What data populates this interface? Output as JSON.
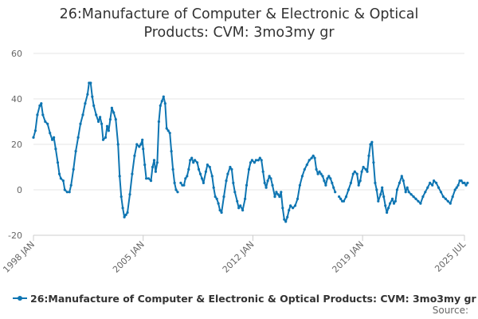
{
  "chart_data": {
    "type": "line",
    "title_line1": "26:Manufacture of Computer & Electronic & Optical",
    "title_line2": "Products: CVM: 3mo3my gr",
    "x_ticks": [
      "1998 JAN",
      "2005 JAN",
      "2012 JAN",
      "2019 JAN",
      "2025 JUL"
    ],
    "y_ticks": [
      "-20",
      "0",
      "20",
      "40",
      "60"
    ],
    "ylim": [
      -20,
      60
    ],
    "xlim": [
      1998.0,
      2025.5
    ],
    "grid": true,
    "legend_position": "bottom",
    "source": "Source:",
    "colors": {
      "series": "#0e75b2",
      "grid": "#e6e6e6",
      "axis": "#cccccc",
      "text": "#666666"
    },
    "series": [
      {
        "name": "26:Manufacture of Computer & Electronic & Optical Products: CVM: 3mo3my gr",
        "points": [
          [
            1998.0,
            23
          ],
          [
            1998.12,
            26
          ],
          [
            1998.25,
            33
          ],
          [
            1998.4,
            37
          ],
          [
            1998.5,
            38
          ],
          [
            1998.6,
            33
          ],
          [
            1998.75,
            30
          ],
          [
            1998.9,
            29
          ],
          [
            1999.05,
            25
          ],
          [
            1999.2,
            22
          ],
          [
            1999.3,
            23
          ],
          [
            1999.42,
            18
          ],
          [
            1999.55,
            12
          ],
          [
            1999.65,
            7
          ],
          [
            1999.75,
            5
          ],
          [
            1999.9,
            4
          ],
          [
            2000.0,
            0
          ],
          [
            2000.15,
            -1
          ],
          [
            2000.3,
            -1
          ],
          [
            2000.4,
            2
          ],
          [
            2000.55,
            9
          ],
          [
            2000.7,
            17
          ],
          [
            2000.85,
            23
          ],
          [
            2001.0,
            29
          ],
          [
            2001.15,
            33
          ],
          [
            2001.3,
            38
          ],
          [
            2001.45,
            42
          ],
          [
            2001.55,
            47
          ],
          [
            2001.65,
            47
          ],
          [
            2001.75,
            41
          ],
          [
            2001.85,
            37
          ],
          [
            2002.0,
            33
          ],
          [
            2002.15,
            30
          ],
          [
            2002.25,
            32
          ],
          [
            2002.35,
            29
          ],
          [
            2002.45,
            22
          ],
          [
            2002.6,
            23
          ],
          [
            2002.7,
            28
          ],
          [
            2002.8,
            26
          ],
          [
            2002.9,
            31
          ],
          [
            2003.0,
            36
          ],
          [
            2003.12,
            34
          ],
          [
            2003.25,
            31
          ],
          [
            2003.4,
            20
          ],
          [
            2003.5,
            6
          ],
          [
            2003.6,
            -3
          ],
          [
            2003.7,
            -8
          ],
          [
            2003.8,
            -12
          ],
          [
            2003.9,
            -11
          ],
          [
            2004.0,
            -10
          ],
          [
            2004.15,
            -2
          ],
          [
            2004.3,
            7
          ],
          [
            2004.45,
            15
          ],
          [
            2004.6,
            20
          ],
          [
            2004.75,
            19
          ],
          [
            2004.85,
            20
          ],
          [
            2004.95,
            22
          ],
          [
            2005.0,
            18
          ],
          [
            2005.1,
            11
          ],
          [
            2005.2,
            5
          ],
          [
            2005.35,
            5
          ],
          [
            2005.5,
            4
          ],
          [
            2005.6,
            10
          ],
          [
            2005.7,
            13
          ],
          [
            2005.8,
            8
          ],
          [
            2005.9,
            12
          ],
          [
            2006.0,
            30
          ],
          [
            2006.1,
            37
          ],
          [
            2006.2,
            39
          ],
          [
            2006.3,
            41
          ],
          [
            2006.4,
            38
          ],
          [
            2006.5,
            27
          ],
          [
            2006.6,
            26
          ],
          [
            2006.7,
            25
          ],
          [
            2006.8,
            17
          ],
          [
            2006.9,
            9
          ],
          [
            2007.0,
            3
          ],
          [
            2007.1,
            0
          ],
          [
            2007.2,
            -1
          ],
          [
            2007.4,
            3
          ],
          [
            2007.5,
            2
          ],
          [
            2007.6,
            2
          ],
          [
            2007.7,
            5
          ],
          [
            2007.8,
            6
          ],
          [
            2007.9,
            9
          ],
          [
            2008.0,
            13
          ],
          [
            2008.1,
            14
          ],
          [
            2008.2,
            12
          ],
          [
            2008.3,
            13
          ],
          [
            2008.45,
            12
          ],
          [
            2008.55,
            9
          ],
          [
            2008.65,
            7
          ],
          [
            2008.75,
            5
          ],
          [
            2008.85,
            3
          ],
          [
            2009.0,
            8
          ],
          [
            2009.1,
            11
          ],
          [
            2009.25,
            10
          ],
          [
            2009.4,
            6
          ],
          [
            2009.5,
            1
          ],
          [
            2009.6,
            -3
          ],
          [
            2009.7,
            -4
          ],
          [
            2009.8,
            -6
          ],
          [
            2009.9,
            -9
          ],
          [
            2010.0,
            -10
          ],
          [
            2010.15,
            -3
          ],
          [
            2010.3,
            4
          ],
          [
            2010.4,
            7
          ],
          [
            2010.55,
            10
          ],
          [
            2010.65,
            9
          ],
          [
            2010.75,
            3
          ],
          [
            2010.85,
            -1
          ],
          [
            2011.0,
            -5
          ],
          [
            2011.1,
            -8
          ],
          [
            2011.2,
            -7
          ],
          [
            2011.35,
            -9
          ],
          [
            2011.5,
            -4
          ],
          [
            2011.6,
            2
          ],
          [
            2011.75,
            9
          ],
          [
            2011.85,
            12
          ],
          [
            2011.95,
            13
          ],
          [
            2012.1,
            12
          ],
          [
            2012.2,
            13
          ],
          [
            2012.35,
            13
          ],
          [
            2012.45,
            14
          ],
          [
            2012.55,
            13
          ],
          [
            2012.65,
            8
          ],
          [
            2012.75,
            3
          ],
          [
            2012.85,
            1
          ],
          [
            2012.95,
            4
          ],
          [
            2013.05,
            6
          ],
          [
            2013.15,
            5
          ],
          [
            2013.25,
            2
          ],
          [
            2013.4,
            -3
          ],
          [
            2013.5,
            -1
          ],
          [
            2013.6,
            -2
          ],
          [
            2013.7,
            -3
          ],
          [
            2013.8,
            -1
          ],
          [
            2013.9,
            -8
          ],
          [
            2014.0,
            -13
          ],
          [
            2014.1,
            -14
          ],
          [
            2014.2,
            -12
          ],
          [
            2014.3,
            -9
          ],
          [
            2014.4,
            -7
          ],
          [
            2014.55,
            -8
          ],
          [
            2014.7,
            -7
          ],
          [
            2014.85,
            -4
          ],
          [
            2015.0,
            2
          ],
          [
            2015.15,
            6
          ],
          [
            2015.3,
            9
          ],
          [
            2015.45,
            11
          ],
          [
            2015.6,
            13
          ],
          [
            2015.75,
            14
          ],
          [
            2015.85,
            15
          ],
          [
            2015.95,
            14
          ],
          [
            2016.05,
            9
          ],
          [
            2016.15,
            7
          ],
          [
            2016.25,
            8
          ],
          [
            2016.35,
            7
          ],
          [
            2016.45,
            6
          ],
          [
            2016.55,
            4
          ],
          [
            2016.65,
            2
          ],
          [
            2016.75,
            5
          ],
          [
            2016.85,
            6
          ],
          [
            2016.95,
            5
          ],
          [
            2017.05,
            3
          ],
          [
            2017.15,
            1
          ],
          [
            2017.25,
            -1
          ],
          [
            2017.5,
            -3
          ],
          [
            2017.6,
            -4
          ],
          [
            2017.7,
            -5
          ],
          [
            2017.8,
            -5
          ],
          [
            2017.95,
            -3
          ],
          [
            2018.1,
            0
          ],
          [
            2018.25,
            3
          ],
          [
            2018.4,
            7
          ],
          [
            2018.5,
            8
          ],
          [
            2018.65,
            7
          ],
          [
            2018.75,
            2
          ],
          [
            2018.85,
            4
          ],
          [
            2018.95,
            8
          ],
          [
            2019.05,
            10
          ],
          [
            2019.2,
            9
          ],
          [
            2019.3,
            8
          ],
          [
            2019.4,
            15
          ],
          [
            2019.5,
            20
          ],
          [
            2019.6,
            21
          ],
          [
            2019.7,
            12
          ],
          [
            2019.8,
            3
          ],
          [
            2019.9,
            0
          ],
          [
            2020.0,
            -5
          ],
          [
            2020.15,
            -2
          ],
          [
            2020.25,
            1
          ],
          [
            2020.35,
            -3
          ],
          [
            2020.45,
            -7
          ],
          [
            2020.55,
            -10
          ],
          [
            2020.65,
            -8
          ],
          [
            2020.75,
            -6
          ],
          [
            2020.9,
            -4
          ],
          [
            2021.0,
            -6
          ],
          [
            2021.1,
            -5
          ],
          [
            2021.2,
            0
          ],
          [
            2021.35,
            3
          ],
          [
            2021.5,
            6
          ],
          [
            2021.6,
            4
          ],
          [
            2021.75,
            -1
          ],
          [
            2021.85,
            1
          ],
          [
            2021.95,
            -1
          ],
          [
            2022.1,
            -2
          ],
          [
            2022.25,
            -3
          ],
          [
            2022.4,
            -4
          ],
          [
            2022.55,
            -5
          ],
          [
            2022.7,
            -6
          ],
          [
            2022.85,
            -3
          ],
          [
            2023.0,
            -1
          ],
          [
            2023.15,
            1
          ],
          [
            2023.3,
            3
          ],
          [
            2023.45,
            2
          ],
          [
            2023.55,
            4
          ],
          [
            2023.7,
            3
          ],
          [
            2023.85,
            1
          ],
          [
            2024.0,
            -1
          ],
          [
            2024.15,
            -3
          ],
          [
            2024.3,
            -4
          ],
          [
            2024.45,
            -5
          ],
          [
            2024.6,
            -6
          ],
          [
            2024.75,
            -3
          ],
          [
            2024.9,
            0
          ],
          [
            2025.0,
            1
          ],
          [
            2025.1,
            2
          ],
          [
            2025.2,
            4
          ],
          [
            2025.3,
            4
          ],
          [
            2025.4,
            3
          ],
          [
            2025.5,
            3
          ],
          [
            2025.6,
            2
          ],
          [
            2025.7,
            3
          ]
        ]
      }
    ]
  }
}
